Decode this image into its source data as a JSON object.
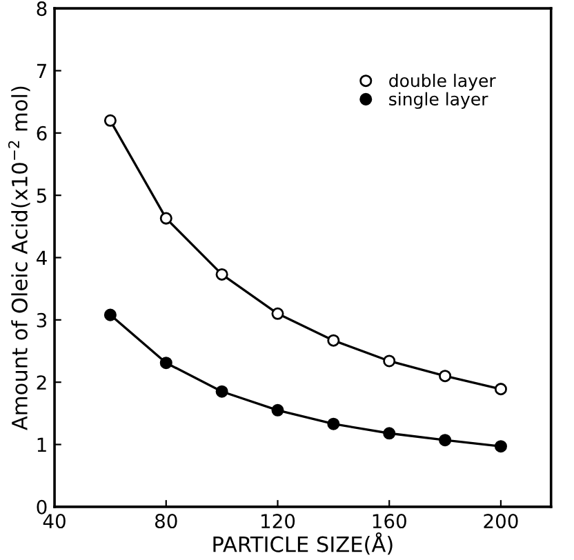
{
  "chart_data": {
    "type": "line",
    "xlabel": "PARTICLE SIZE(Å)",
    "ylabel": "Amount of Oleic Acid(x10$^{−2}$ mol)",
    "x": [
      60,
      80,
      100,
      120,
      140,
      160,
      180,
      200
    ],
    "series": [
      {
        "name": "double layer",
        "color": "#000000",
        "values": [
          6.2,
          4.63,
          3.73,
          3.1,
          2.67,
          2.34,
          2.1,
          1.89
        ]
      },
      {
        "name": "single layer",
        "color": "#000000",
        "values": [
          3.08,
          2.31,
          1.85,
          1.55,
          1.33,
          1.18,
          1.07,
          0.97
        ]
      }
    ],
    "xlim": [
      40,
      218
    ],
    "xticks": [
      40,
      80,
      120,
      160,
      200
    ],
    "ylim": [
      0,
      8
    ],
    "yticks": [
      0,
      1,
      2,
      3,
      4,
      5,
      6,
      7,
      8
    ],
    "marker": "circle",
    "line_style": "solid",
    "grid": false,
    "legend": "top right"
  }
}
